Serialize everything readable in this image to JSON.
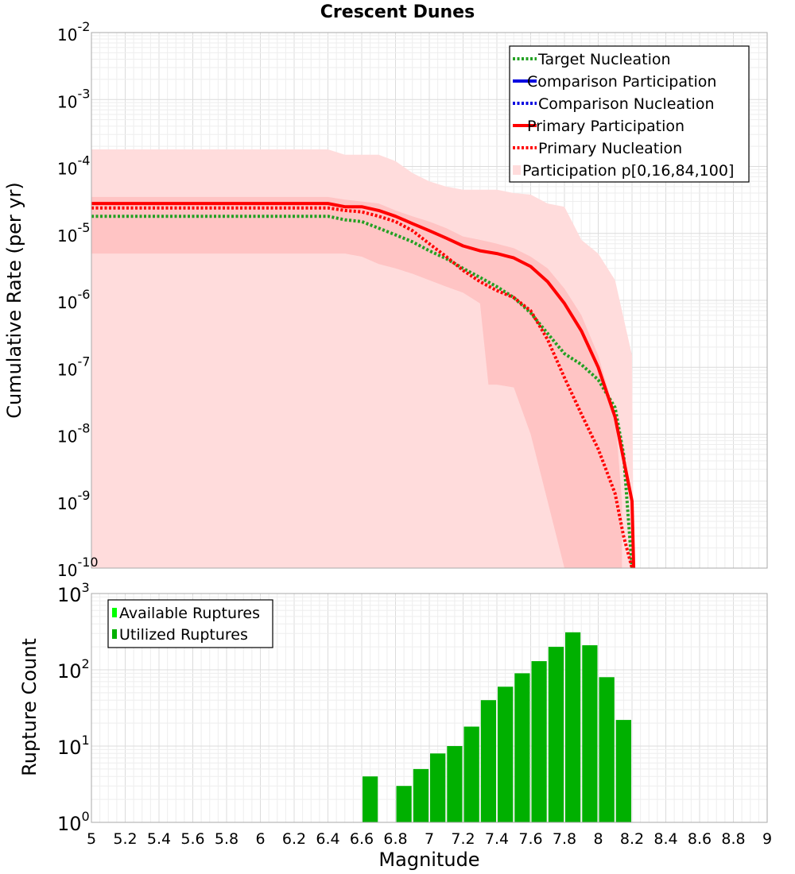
{
  "chart_data": [
    {
      "type": "line",
      "title": "Crescent Dunes",
      "xlabel": "",
      "ylabel": "Cumulative Rate (per yr)",
      "xlim": [
        5,
        9
      ],
      "ylim": [
        1e-10,
        0.01
      ],
      "yscale": "log",
      "grid": true,
      "legend_position": "top-right",
      "ytick_labels": [
        {
          "base": "10",
          "exp": "-10",
          "value": 1e-10
        },
        {
          "base": "10",
          "exp": "-9",
          "value": 1e-09
        },
        {
          "base": "10",
          "exp": "-8",
          "value": 1e-08
        },
        {
          "base": "10",
          "exp": "-7",
          "value": 1e-07
        },
        {
          "base": "10",
          "exp": "-6",
          "value": 1e-06
        },
        {
          "base": "10",
          "exp": "-5",
          "value": 1e-05
        },
        {
          "base": "10",
          "exp": "-4",
          "value": 0.0001
        },
        {
          "base": "10",
          "exp": "-3",
          "value": 0.001
        },
        {
          "base": "10",
          "exp": "-2",
          "value": 0.01
        }
      ],
      "series": [
        {
          "name": "Target Nucleation",
          "color": "#22a022",
          "style": "dotted",
          "x": [
            5.0,
            6.4,
            6.5,
            6.6,
            6.7,
            6.8,
            6.9,
            7.0,
            7.1,
            7.2,
            7.3,
            7.4,
            7.5,
            7.6,
            7.7,
            7.8,
            7.9,
            8.0,
            8.1,
            8.15,
            8.2
          ],
          "y": [
            1.8e-05,
            1.8e-05,
            1.6e-05,
            1.5e-05,
            1.2e-05,
            9.5e-06,
            7.5e-06,
            5.5e-06,
            4.2e-06,
            3e-06,
            2.2e-06,
            1.6e-06,
            1.1e-06,
            6.5e-07,
            3.2e-07,
            1.6e-07,
            1.1e-07,
            6.5e-08,
            2.5e-08,
            5e-09,
            1e-10
          ]
        },
        {
          "name": "Comparison Participation",
          "color": "#0000e0",
          "style": "solid",
          "x": [],
          "y": []
        },
        {
          "name": "Comparison Nucleation",
          "color": "#0000e0",
          "style": "dotted",
          "x": [],
          "y": []
        },
        {
          "name": "Primary Participation",
          "color": "#ff0000",
          "style": "solid",
          "x": [
            5.0,
            6.4,
            6.5,
            6.6,
            6.7,
            6.8,
            6.9,
            7.0,
            7.1,
            7.2,
            7.3,
            7.4,
            7.5,
            7.6,
            7.7,
            7.8,
            7.9,
            8.0,
            8.1,
            8.2,
            8.21
          ],
          "y": [
            2.8e-05,
            2.8e-05,
            2.5e-05,
            2.5e-05,
            2.2e-05,
            1.8e-05,
            1.4e-05,
            1.1e-05,
            8.5e-06,
            6.5e-06,
            5.5e-06,
            5e-06,
            4.3e-06,
            3.2e-06,
            1.9e-06,
            9e-07,
            3.5e-07,
            1e-07,
            1.8e-08,
            1e-09,
            1e-10
          ]
        },
        {
          "name": "Primary Nucleation",
          "color": "#ff0000",
          "style": "dotted",
          "x": [
            5.0,
            6.4,
            6.5,
            6.6,
            6.7,
            6.8,
            6.9,
            7.0,
            7.1,
            7.2,
            7.3,
            7.4,
            7.5,
            7.6,
            7.7,
            7.8,
            7.9,
            8.0,
            8.1,
            8.15,
            8.2
          ],
          "y": [
            2.4e-05,
            2.4e-05,
            2.2e-05,
            2.1e-05,
            1.8e-05,
            1.5e-05,
            1.1e-05,
            7e-06,
            4.5e-06,
            2.8e-06,
            1.9e-06,
            1.4e-06,
            1.1e-06,
            7e-07,
            2.6e-07,
            7e-08,
            2e-08,
            6e-09,
            1.3e-09,
            3e-10,
            1e-10
          ]
        }
      ],
      "bands": [
        {
          "name": "Participation p[0,16,84,100]",
          "outer_color": "#ffdcdc",
          "inner_color": "#ffc4c4",
          "p0_p100": {
            "x": [
              5.0,
              6.4,
              6.5,
              6.6,
              6.7,
              6.8,
              6.9,
              7.0,
              7.1,
              7.2,
              7.3,
              7.4,
              7.5,
              7.6,
              7.7,
              7.8,
              7.9,
              8.0,
              8.1,
              8.2,
              8.21
            ],
            "upper": [
              0.00018,
              0.00018,
              0.00015,
              0.00015,
              0.00015,
              0.00012,
              8e-05,
              6e-05,
              5e-05,
              4.5e-05,
              4.5e-05,
              4.5e-05,
              4e-05,
              3.8e-05,
              2.8e-05,
              2.5e-05,
              8e-06,
              5e-06,
              2e-06,
              1.5e-07,
              1e-10
            ],
            "lower": [
              1e-10,
              1e-10,
              1e-10,
              1e-10,
              1e-10,
              1e-10,
              1e-10,
              1e-10,
              1e-10,
              1e-10,
              1e-10,
              1e-10,
              1e-10,
              1e-10,
              1e-10,
              1e-10,
              1e-10,
              1e-10,
              1e-10,
              1e-10,
              1e-10
            ]
          },
          "p16_p84": {
            "x": [
              5.0,
              6.4,
              6.5,
              6.6,
              6.7,
              6.8,
              6.9,
              7.0,
              7.1,
              7.2,
              7.3,
              7.35,
              7.4,
              7.5,
              7.6,
              7.7,
              7.8,
              7.9,
              8.0,
              8.1,
              8.14
            ],
            "upper": [
              3.5e-05,
              3.5e-05,
              3.2e-05,
              3e-05,
              2.8e-05,
              2.2e-05,
              1.8e-05,
              1.5e-05,
              1.2e-05,
              9e-06,
              8e-06,
              7.5e-06,
              7e-06,
              6e-06,
              4.5e-06,
              3e-06,
              1.5e-06,
              6e-07,
              1.5e-07,
              2e-08,
              1e-09
            ],
            "lower": [
              5e-06,
              5e-06,
              5e-06,
              4.5e-06,
              3.5e-06,
              3e-06,
              2.5e-06,
              2e-06,
              1.6e-06,
              1.3e-06,
              9e-07,
              5.5e-08,
              5.5e-08,
              5e-08,
              1e-08,
              1e-09,
              1e-10,
              1e-10,
              1e-10,
              1e-10,
              1e-10
            ]
          }
        }
      ]
    },
    {
      "type": "bar",
      "title": "",
      "xlabel": "Magnitude",
      "ylabel": "Rupture Count",
      "xlim": [
        5,
        9
      ],
      "ylim": [
        1,
        1000
      ],
      "yscale": "log",
      "grid": true,
      "legend_position": "top-left",
      "bin_width": 0.1,
      "xtick_labels": [
        "5",
        "5.2",
        "5.4",
        "5.6",
        "5.8",
        "6",
        "6.2",
        "6.4",
        "6.6",
        "6.8",
        "7",
        "7.2",
        "7.4",
        "7.6",
        "7.8",
        "8",
        "8.2",
        "8.4",
        "8.6",
        "8.8",
        "9"
      ],
      "xtick_values": [
        5,
        5.2,
        5.4,
        5.6,
        5.8,
        6,
        6.2,
        6.4,
        6.6,
        6.8,
        7,
        7.2,
        7.4,
        7.6,
        7.8,
        8,
        8.2,
        8.4,
        8.6,
        8.8,
        9
      ],
      "ytick_labels": [
        {
          "base": "10",
          "exp": "0",
          "value": 1
        },
        {
          "base": "10",
          "exp": "1",
          "value": 10
        },
        {
          "base": "10",
          "exp": "2",
          "value": 100
        },
        {
          "base": "10",
          "exp": "3",
          "value": 1000
        }
      ],
      "legend": [
        {
          "name": "Available Ruptures",
          "color": "#00ff00"
        },
        {
          "name": "Utilized Ruptures",
          "color": "#00b000"
        }
      ],
      "series": [
        {
          "name": "Utilized Ruptures",
          "color": "#00b000",
          "x": [
            6.65,
            6.85,
            6.95,
            7.05,
            7.15,
            7.25,
            7.35,
            7.45,
            7.55,
            7.65,
            7.75,
            7.85,
            7.95,
            8.05,
            8.15
          ],
          "values": [
            4,
            3,
            5,
            8,
            10,
            18,
            40,
            60,
            90,
            130,
            200,
            310,
            210,
            80,
            22
          ]
        }
      ]
    }
  ]
}
